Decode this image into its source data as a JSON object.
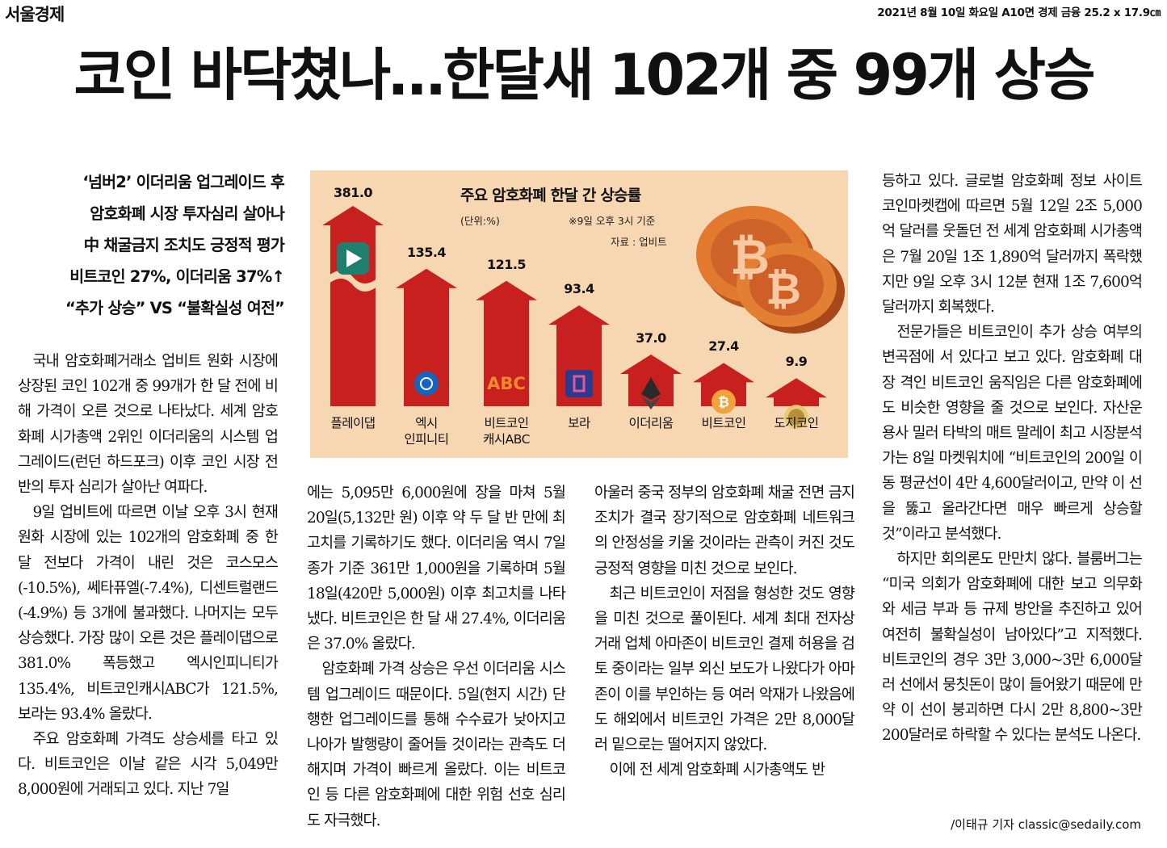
{
  "masthead": "서울경제",
  "dateline": "2021년 8월 10일 화요일 A10면 경제 금융 25.2 x 17.9㎝",
  "headline": "코인 바닥쳤나…한달새 102개 중 99개 상승",
  "subhead": [
    "‘넘버2’ 이더리움 업그레이드 후",
    "암호화폐 시장 투자심리 살아나",
    "中 채굴금지 조치도 긍정적 평가",
    "비트코인 27%, 이더리움 37%↑",
    "“추가 상승” VS “불확실성 여전”"
  ],
  "columns": [
    [
      "국내 암호화폐거래소 업비트 원화 시장에 상장된 코인 102개 중 99개가 한 달 전에 비해 가격이 오른 것으로 나타났다. 세계 암호화폐 시가총액 2위인 이더리움의 시스템 업그레이드(런던 하드포크) 이후 코인 시장 전반의 투자 심리가 살아난 여파다.",
      "9일 업비트에 따르면 이날 오후 3시 현재 원화 시장에 있는 102개의 암호화폐 중 한 달 전보다 가격이 내린 것은 코스모스(-10.5%), 쎄타퓨엘(-7.4%), 디센트럴랜드(-4.9%) 등 3개에 불과했다. 나머지는 모두 상승했다. 가장 많이 오른 것은 플레이댑으로 381.0% 폭등했고 엑시인피니티가 135.4%, 비트코인캐시ABC가 121.5%, 보라는 93.4% 올랐다.",
      "주요 암호화폐 가격도 상승세를 타고 있다. 비트코인은 이날 같은 시각 5,049만 8,000원에 거래되고 있다. 지난 7일"
    ],
    [
      "에는 5,095만 6,000원에 장을 마쳐 5월 20일(5,132만 원) 이후 약 두 달 반 만에 최고치를 기록하기도 했다. 이더리움 역시 7일 종가 기준 361만 1,000원을 기록하며 5월 18일(420만 5,000원) 이후 최고치를 나타냈다. 비트코인은 한 달 새 27.4%, 이더리움은 37.0% 올랐다.",
      "암호화폐 가격 상승은 우선 이더리움 시스템 업그레이드 때문이다. 5일(현지 시간) 단행한 업그레이드를 통해 수수료가 낮아지고 나아가 발행량이 줄어들 것이라는 관측도 더해지며 가격이 빠르게 올랐다. 이는 비트코인 등 다른 암호화폐에 대한 위험 선호 심리도 자극했다."
    ],
    [
      "아울러 중국 정부의 암호화폐 채굴 전면 금지 조치가 결국 장기적으로 암호화폐 네트워크의 안정성을 키울 것이라는 관측이 커진 것도 긍정적 영향을 미친 것으로 보인다.",
      "최근 비트코인이 저점을 형성한 것도 영향을 미친 것으로 풀이된다. 세계 최대 전자상거래 업체 아마존이 비트코인 결제 허용을 검토 중이라는 일부 외신 보도가 나왔다가 아마존이 이를 부인하는 등 여러 악재가 나왔음에도 해외에서 비트코인 가격은 2만 8,000달러 밑으로는 떨어지지 않았다.",
      "이에 전 세계 암호화폐 시가총액도 반"
    ],
    [
      "등하고 있다. 글로벌 암호화폐 정보 사이트 코인마켓캡에 따르면 5월 12일 2조 5,000억 달러를 웃돌던 전 세계 암호화폐 시가총액은 7월 20일 1조 1,890억 달러까지 폭락했지만 9일 오후 3시 12분 현재 1조 7,600억 달러까지 회복했다.",
      "전문가들은 비트코인이 추가 상승 여부의 변곡점에 서 있다고 보고 있다. 암호화폐 대장 격인 비트코인 움직임은 다른 암호화폐에도 비슷한 영향을 줄 것으로 보인다. 자산운용사 밀러 타박의 매트 말레이 최고 시장분석가는 8일 마켓워치에 “비트코인의 200일 이동 평균선이 4만 4,600달러이고, 만약 이 선을 뚫고 올라간다면 매우 빠르게 상승할 것”이라고 분석했다.",
      "하지만 회의론도 만만치 않다. 블룸버그는 “미국 의회가 암호화폐에 대한 보고 의무화와 세금 부과 등 규제 방안을 추진하고 있어 여전히 불확실성이 남아있다”고 지적했다. 비트코인의 경우 3만 3,000~3만 6,000달러 선에서 뭉칫돈이 많이 들어왔기 때문에 만약 이 선이 붕괴하면 다시 2만 8,800~3만 200달러로 하락할 수 있다는 분석도 나온다."
    ]
  ],
  "byline": "/이태규 기자 classic@sedaily.com",
  "chart_data": {
    "type": "bar",
    "title": "주요 암호화폐 한달 간 상승률",
    "unit": "(단위:%)",
    "note": "※9일 오후 3시 기준",
    "source": "자료 : 업비트",
    "categories": [
      "플레이댑",
      "엑시\n인피니티",
      "비트코인\n캐시ABC",
      "보라",
      "이더리움",
      "비트코인",
      "도지코인"
    ],
    "values": [
      381.0,
      135.4,
      121.5,
      93.4,
      37.0,
      27.4,
      9.9
    ],
    "value_labels": [
      "381.0",
      "135.4",
      "121.5",
      "93.4",
      "37.0",
      "27.4",
      "9.9"
    ],
    "icon_texts": [
      "",
      "",
      "ABC",
      "",
      "",
      "",
      ""
    ],
    "axis_break_on_first_bar": true,
    "bar_color": "#c8201e",
    "background_color": "#f7d7b1",
    "icons": [
      "playdapp-icon",
      "axie-icon",
      "abc-icon",
      "bora-icon",
      "ethereum-icon",
      "bitcoin-icon",
      "dogecoin-icon"
    ]
  }
}
